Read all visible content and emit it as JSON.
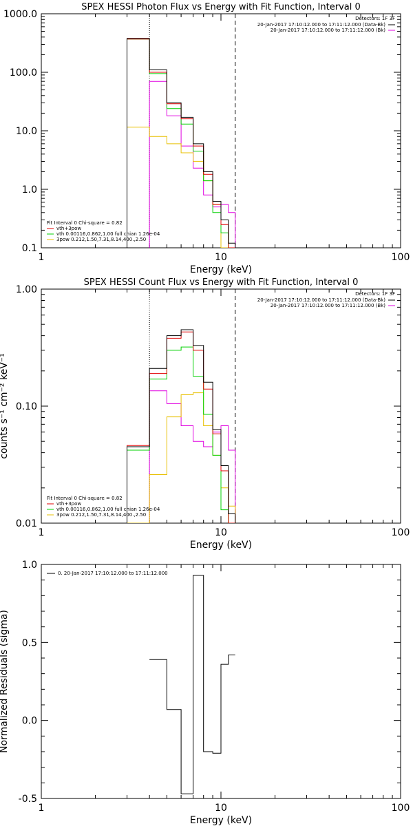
{
  "colors": {
    "total": "#000000",
    "model": "#e00000",
    "vth": "#00d000",
    "spow": "#e8c000",
    "data": "#e000e0",
    "background": "#ffffff"
  },
  "chart_data": [
    {
      "type": "line",
      "title": "SPEX HESSI Photon Flux vs Energy with Fit Function, Interval 0",
      "xlabel": "Energy (keV)",
      "ylabel": "",
      "xscale": "log",
      "yscale": "log",
      "xlim": [
        1,
        100
      ],
      "ylim": [
        0.1,
        1000
      ],
      "xticks": [
        "1",
        "10",
        "100"
      ],
      "yticks": [
        "0.1",
        "1.0",
        "10.0",
        "100.0",
        "1000.0"
      ],
      "vlines": [
        {
          "x": 4.0,
          "style": "dotted"
        },
        {
          "x": 12.0,
          "style": "dashed"
        }
      ],
      "legend_right": {
        "header": "Detectors: 1F 3F",
        "entries": [
          "20-Jan-2017 17:10:12.000 to 17:11:12.000 (Data-Bk)",
          "20-Jan-2017 17:10:12.000 to 17:11:12.000 (Bk)"
        ]
      },
      "legend_left": {
        "header": "Fit Interval 0   Chi-square = 0.82",
        "entries": [
          "vth+3pow",
          "vth 0.00116,0.862,1.00  full chian 1.26e-04",
          "3pow 0.212,1.50,7.31,8.14,400.,2.50"
        ]
      },
      "bin_edges": [
        3.0,
        4.0,
        5.0,
        6.0,
        7.0,
        8.0,
        9.0,
        10.0,
        11.0,
        12.0
      ],
      "series": [
        {
          "role": "total",
          "values": [
            380,
            110,
            30,
            17,
            6.0,
            2.0,
            0.62,
            0.3,
            0.12
          ]
        },
        {
          "role": "model",
          "values": [
            370,
            100,
            29,
            16,
            5.5,
            1.8,
            0.55,
            0.25,
            0.1
          ]
        },
        {
          "role": "vth",
          "values": [
            370,
            95,
            24,
            13,
            4.5,
            1.4,
            0.4,
            0.18,
            0.06
          ]
        },
        {
          "role": "spow",
          "values": [
            11.5,
            8.0,
            6.0,
            4.2,
            3.0,
            1.4,
            0.55,
            0.09,
            0.05
          ]
        },
        {
          "role": "data",
          "values": [
            null,
            70,
            18,
            5.5,
            2.3,
            0.8,
            0.5,
            0.55,
            0.4
          ]
        }
      ]
    },
    {
      "type": "line",
      "title": "SPEX HESSI Count Flux vs Energy with Fit Function, Interval 0",
      "xlabel": "Energy (keV)",
      "ylabel": "counts s⁻¹ cm⁻² keV⁻¹",
      "xscale": "log",
      "yscale": "log",
      "xlim": [
        1,
        100
      ],
      "ylim": [
        0.01,
        1
      ],
      "xticks": [
        "1",
        "10",
        "100"
      ],
      "yticks": [
        "0.01",
        "0.10",
        "1.00"
      ],
      "vlines": [
        {
          "x": 4.0,
          "style": "dotted"
        },
        {
          "x": 12.0,
          "style": "dashed"
        }
      ],
      "legend_right": {
        "header": "Detectors: 1F 3F",
        "entries": [
          "20-Jan-2017 17:10:12.000 to 17:11:12.000 (Data-Bk)",
          "20-Jan-2017 17:10:12.000 to 17:11:12.000 (Bk)"
        ]
      },
      "legend_left": {
        "header": "Fit Interval 0   Chi-square = 0.82",
        "entries": [
          "vth+3pow",
          "vth 0.00116,0.862,1.00  full chian 1.26e-04",
          "3pow 0.212,1.50,7.31,8.14,400.,2.50"
        ]
      },
      "bin_edges": [
        3.0,
        4.0,
        5.0,
        6.0,
        7.0,
        8.0,
        9.0,
        10.0,
        11.0,
        12.0
      ],
      "series": [
        {
          "role": "total",
          "values": [
            0.045,
            0.21,
            0.4,
            0.45,
            0.33,
            0.16,
            0.063,
            0.031,
            0.012
          ]
        },
        {
          "role": "model",
          "values": [
            0.046,
            0.19,
            0.38,
            0.43,
            0.3,
            0.14,
            0.058,
            0.028,
            0.01
          ]
        },
        {
          "role": "vth",
          "values": [
            0.042,
            0.17,
            0.3,
            0.32,
            0.18,
            0.085,
            0.038,
            0.013,
            0.005
          ]
        },
        {
          "role": "spow",
          "values": [
            0.006,
            0.026,
            0.081,
            0.125,
            0.13,
            0.068,
            0.038,
            0.02,
            0.014
          ]
        },
        {
          "role": "data",
          "values": [
            null,
            0.135,
            0.105,
            0.068,
            0.05,
            0.045,
            0.06,
            0.068,
            0.042
          ]
        }
      ]
    },
    {
      "type": "line",
      "title": "",
      "xlabel": "Energy (keV)",
      "ylabel": "Normalized Residuals (sigma)",
      "xscale": "log",
      "yscale": "linear",
      "xlim": [
        1,
        100
      ],
      "ylim": [
        -0.5,
        1.0
      ],
      "xticks": [
        "1",
        "10",
        "100"
      ],
      "yticks": [
        "-0.5",
        "0.0",
        "0.5",
        "1.0"
      ],
      "legend_left": {
        "header": "",
        "entries": [
          "0. 20-Jan-2017 17:10:12.000 to 17:11:12.000"
        ]
      },
      "bin_edges": [
        4.0,
        5.0,
        6.0,
        7.0,
        8.0,
        9.0,
        10.0,
        11.0,
        12.0
      ],
      "series": [
        {
          "role": "total",
          "values": [
            0.39,
            0.07,
            -0.47,
            0.93,
            -0.2,
            -0.21,
            0.36,
            0.42
          ]
        }
      ]
    }
  ]
}
